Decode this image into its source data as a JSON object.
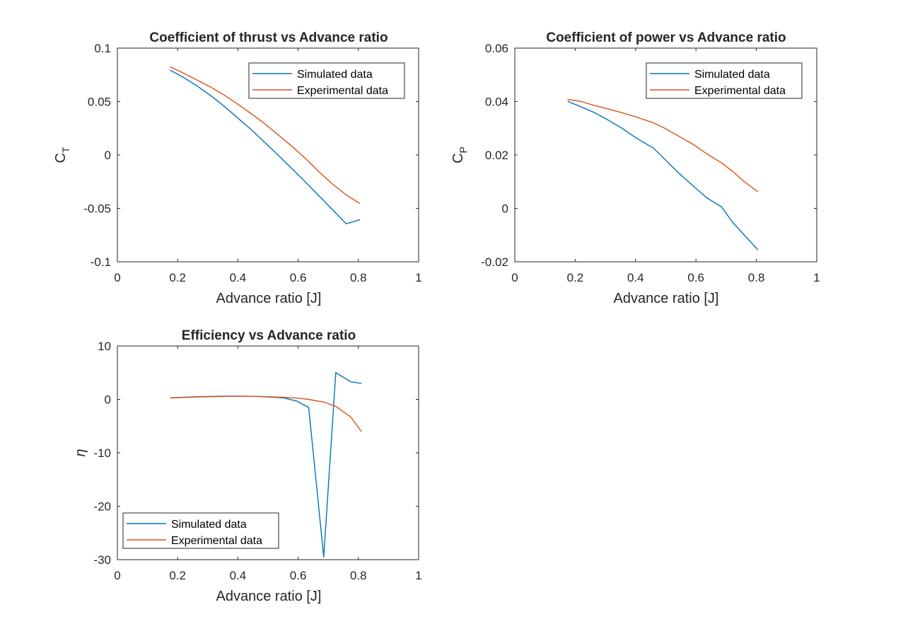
{
  "figure": {
    "background": "#ffffff"
  },
  "series_colors": {
    "simulated": "#0072BD",
    "experimental": "#D95319"
  },
  "chart_data": [
    {
      "id": "thrust",
      "type": "line",
      "title": "Coefficient of thrust vs Advance ratio",
      "xlabel": "Advance ratio [J]",
      "ylabel_main": "C",
      "ylabel_sub": "T",
      "xlim": [
        0,
        1
      ],
      "ylim": [
        -0.1,
        0.1
      ],
      "xticks": [
        0,
        0.2,
        0.4,
        0.6,
        0.8,
        1
      ],
      "xtick_labels": [
        "0",
        "0.2",
        "0.4",
        "0.6",
        "0.8",
        "1"
      ],
      "yticks": [
        -0.1,
        -0.05,
        0,
        0.05,
        0.1
      ],
      "ytick_labels": [
        "-0.1",
        "-0.05",
        "0",
        "0.05",
        "0.1"
      ],
      "legend_position": "top-right",
      "series": [
        {
          "name": "Simulated data",
          "color_key": "simulated",
          "x": [
            0.175,
            0.22,
            0.265,
            0.31,
            0.355,
            0.4,
            0.445,
            0.49,
            0.535,
            0.58,
            0.625,
            0.67,
            0.715,
            0.76,
            0.805
          ],
          "y": [
            0.0795,
            0.0725,
            0.0645,
            0.0555,
            0.0455,
            0.0345,
            0.0235,
            0.0115,
            -0.0005,
            -0.013,
            -0.0255,
            -0.0385,
            -0.0515,
            -0.0645,
            -0.0605
          ]
        },
        {
          "name": "Experimental data",
          "color_key": "experimental",
          "x": [
            0.175,
            0.22,
            0.265,
            0.31,
            0.355,
            0.4,
            0.445,
            0.49,
            0.535,
            0.58,
            0.625,
            0.67,
            0.715,
            0.76,
            0.805
          ],
          "y": [
            0.0825,
            0.0765,
            0.07,
            0.0635,
            0.056,
            0.0475,
            0.0385,
            0.029,
            0.0185,
            0.008,
            -0.0035,
            -0.016,
            -0.0275,
            -0.0375,
            -0.0455
          ]
        }
      ]
    },
    {
      "id": "power",
      "type": "line",
      "title": "Coefficient of power vs Advance ratio",
      "xlabel": "Advance ratio [J]",
      "ylabel_main": "C",
      "ylabel_sub": "P",
      "xlim": [
        0,
        1
      ],
      "ylim": [
        -0.02,
        0.06
      ],
      "xticks": [
        0,
        0.2,
        0.4,
        0.6,
        0.8,
        1
      ],
      "xtick_labels": [
        "0",
        "0.2",
        "0.4",
        "0.6",
        "0.8",
        "1"
      ],
      "yticks": [
        -0.02,
        0,
        0.02,
        0.04,
        0.06
      ],
      "ytick_labels": [
        "-0.02",
        "0",
        "0.02",
        "0.04",
        "0.06"
      ],
      "legend_position": "top-right",
      "series": [
        {
          "name": "Simulated data",
          "color_key": "simulated",
          "x": [
            0.175,
            0.22,
            0.265,
            0.31,
            0.355,
            0.4,
            0.46,
            0.5,
            0.54,
            0.59,
            0.635,
            0.685,
            0.72,
            0.76,
            0.805
          ],
          "y": [
            0.0401,
            0.038,
            0.0358,
            0.033,
            0.03,
            0.0265,
            0.0225,
            0.018,
            0.0135,
            0.0085,
            0.004,
            0.0005,
            -0.005,
            -0.01,
            -0.0155
          ]
        },
        {
          "name": "Experimental data",
          "color_key": "experimental",
          "x": [
            0.175,
            0.22,
            0.265,
            0.31,
            0.355,
            0.4,
            0.46,
            0.5,
            0.54,
            0.59,
            0.635,
            0.685,
            0.72,
            0.76,
            0.805
          ],
          "y": [
            0.0408,
            0.04,
            0.0385,
            0.0372,
            0.0358,
            0.0343,
            0.032,
            0.0298,
            0.0272,
            0.024,
            0.0205,
            0.017,
            0.014,
            0.01,
            0.0062
          ]
        }
      ]
    },
    {
      "id": "efficiency",
      "type": "line",
      "title": "Efficiency vs Advance ratio",
      "xlabel": "Advance ratio [J]",
      "ylabel_main": "η",
      "ylabel_sub": "",
      "xlim": [
        0,
        1
      ],
      "ylim": [
        -30,
        10
      ],
      "xticks": [
        0,
        0.2,
        0.4,
        0.6,
        0.8,
        1
      ],
      "xtick_labels": [
        "0",
        "0.2",
        "0.4",
        "0.6",
        "0.8",
        "1"
      ],
      "yticks": [
        -30,
        -20,
        -10,
        0,
        10
      ],
      "ytick_labels": [
        "-30",
        "-20",
        "-10",
        "0",
        "10"
      ],
      "legend_position": "bottom-left",
      "series": [
        {
          "name": "Simulated data",
          "color_key": "simulated",
          "x": [
            0.175,
            0.22,
            0.265,
            0.31,
            0.355,
            0.4,
            0.46,
            0.5,
            0.55,
            0.595,
            0.635,
            0.685,
            0.725,
            0.775,
            0.81
          ],
          "y": [
            0.3,
            0.4,
            0.5,
            0.55,
            0.6,
            0.6,
            0.55,
            0.45,
            0.3,
            -0.3,
            -1.5,
            -29.5,
            5.0,
            3.3,
            3.0
          ]
        },
        {
          "name": "Experimental data",
          "color_key": "experimental",
          "x": [
            0.175,
            0.22,
            0.265,
            0.31,
            0.355,
            0.4,
            0.46,
            0.5,
            0.55,
            0.595,
            0.635,
            0.685,
            0.725,
            0.775,
            0.81
          ],
          "y": [
            0.3,
            0.35,
            0.45,
            0.5,
            0.55,
            0.6,
            0.55,
            0.5,
            0.4,
            0.25,
            0.0,
            -0.5,
            -1.3,
            -3.3,
            -6.0
          ]
        }
      ]
    }
  ]
}
